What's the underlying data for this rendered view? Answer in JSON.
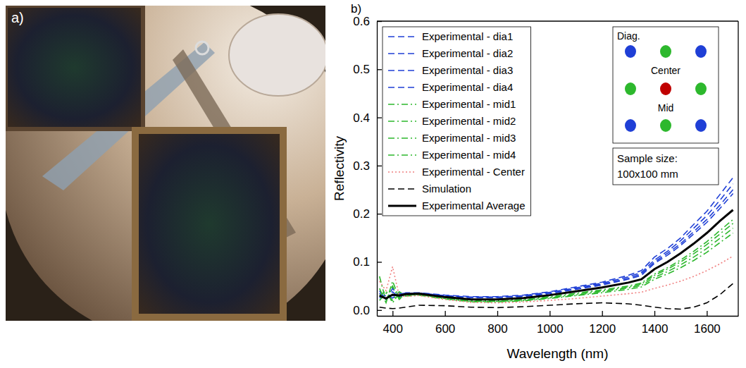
{
  "photo": {
    "panel_label": "a)"
  },
  "chart_data": {
    "type": "line",
    "panel_label": "b)",
    "x_label": "Wavelength (nm)",
    "y_label": "Reflectivity",
    "x": [
      350,
      375,
      400,
      425,
      450,
      500,
      600,
      700,
      800,
      900,
      1000,
      1100,
      1200,
      1300,
      1350,
      1400,
      1450,
      1500,
      1550,
      1600,
      1650,
      1700
    ],
    "xlim": [
      340,
      1720
    ],
    "xticks": [
      400,
      600,
      800,
      1000,
      1200,
      1400,
      1600
    ],
    "ylim": [
      -0.012,
      0.6
    ],
    "yticks": [
      {
        "value": 0,
        "label": "0.0"
      },
      0.1,
      0.2,
      0.3,
      0.4,
      0.5,
      0.6
    ],
    "legend": "upper left",
    "grid": false,
    "annotations": [
      "Diag.",
      "Center",
      "Mid",
      "Sample size:",
      "100x100 mm"
    ],
    "series": [
      {
        "name": "Experimental - dia1",
        "color": "#1f3fd6",
        "line_style": "dashed",
        "values": [
          0.035,
          0.02,
          0.045,
          0.028,
          0.036,
          0.036,
          0.031,
          0.028,
          0.028,
          0.031,
          0.038,
          0.048,
          0.058,
          0.072,
          0.082,
          0.11,
          0.128,
          0.15,
          0.178,
          0.205,
          0.24,
          0.275
        ]
      },
      {
        "name": "Experimental - dia2",
        "color": "#1f3fd6",
        "line_style": "dashed",
        "values": [
          0.028,
          0.03,
          0.025,
          0.035,
          0.033,
          0.035,
          0.03,
          0.027,
          0.027,
          0.03,
          0.037,
          0.046,
          0.056,
          0.069,
          0.078,
          0.104,
          0.122,
          0.144,
          0.17,
          0.196,
          0.228,
          0.262
        ]
      },
      {
        "name": "Experimental - dia3",
        "color": "#1f3fd6",
        "line_style": "dashed",
        "values": [
          0.04,
          0.022,
          0.038,
          0.026,
          0.034,
          0.035,
          0.03,
          0.026,
          0.026,
          0.029,
          0.035,
          0.044,
          0.054,
          0.066,
          0.075,
          0.1,
          0.118,
          0.138,
          0.163,
          0.188,
          0.218,
          0.25
        ]
      },
      {
        "name": "Experimental - dia4",
        "color": "#1f3fd6",
        "line_style": "dashed",
        "values": [
          0.025,
          0.032,
          0.03,
          0.033,
          0.035,
          0.034,
          0.029,
          0.026,
          0.026,
          0.028,
          0.034,
          0.043,
          0.052,
          0.064,
          0.072,
          0.097,
          0.114,
          0.134,
          0.158,
          0.182,
          0.211,
          0.242
        ]
      },
      {
        "name": "Experimental - mid1",
        "color": "#2db82d",
        "line_style": "dashdot",
        "values": [
          0.045,
          0.015,
          0.06,
          0.025,
          0.03,
          0.033,
          0.025,
          0.019,
          0.019,
          0.022,
          0.028,
          0.035,
          0.042,
          0.05,
          0.056,
          0.075,
          0.088,
          0.104,
          0.122,
          0.142,
          0.165,
          0.188
        ]
      },
      {
        "name": "Experimental - mid2",
        "color": "#2db82d",
        "line_style": "dashdot",
        "values": [
          0.02,
          0.035,
          0.02,
          0.038,
          0.031,
          0.032,
          0.024,
          0.018,
          0.018,
          0.021,
          0.026,
          0.033,
          0.04,
          0.048,
          0.054,
          0.072,
          0.085,
          0.1,
          0.117,
          0.136,
          0.158,
          0.18
        ]
      },
      {
        "name": "Experimental - mid3",
        "color": "#2db82d",
        "line_style": "dashdot",
        "values": [
          0.07,
          0.018,
          0.05,
          0.022,
          0.032,
          0.032,
          0.024,
          0.018,
          0.018,
          0.02,
          0.025,
          0.031,
          0.038,
          0.046,
          0.051,
          0.068,
          0.08,
          0.094,
          0.11,
          0.128,
          0.149,
          0.17
        ]
      },
      {
        "name": "Experimental - mid4",
        "color": "#2db82d",
        "line_style": "dashdot",
        "values": [
          0.03,
          0.04,
          0.015,
          0.035,
          0.029,
          0.031,
          0.023,
          0.017,
          0.017,
          0.019,
          0.024,
          0.03,
          0.036,
          0.043,
          0.048,
          0.064,
          0.075,
          0.088,
          0.103,
          0.12,
          0.14,
          0.16
        ]
      },
      {
        "name": "Experimental - Center",
        "color": "#f08080",
        "line_style": "dotted",
        "values": [
          0.06,
          0.04,
          0.09,
          0.03,
          0.028,
          0.03,
          0.022,
          0.016,
          0.015,
          0.017,
          0.02,
          0.024,
          0.029,
          0.034,
          0.037,
          0.045,
          0.052,
          0.06,
          0.07,
          0.082,
          0.096,
          0.112
        ]
      },
      {
        "name": "Simulation",
        "color": "#000000",
        "line_style": "dashed",
        "values": [
          0.006,
          0.004,
          0.003,
          0.004,
          0.006,
          0.01,
          0.009,
          0.006,
          0.005,
          0.007,
          0.01,
          0.013,
          0.015,
          0.013,
          0.01,
          0.006,
          0.003,
          0.002,
          0.006,
          0.015,
          0.032,
          0.055
        ]
      },
      {
        "name": "Experimental Average",
        "color": "#000000",
        "line_style": "solid",
        "values": [
          0.03,
          0.024,
          0.032,
          0.03,
          0.033,
          0.034,
          0.027,
          0.022,
          0.022,
          0.025,
          0.031,
          0.039,
          0.047,
          0.057,
          0.064,
          0.085,
          0.1,
          0.118,
          0.138,
          0.16,
          0.185,
          0.208
        ]
      }
    ]
  }
}
